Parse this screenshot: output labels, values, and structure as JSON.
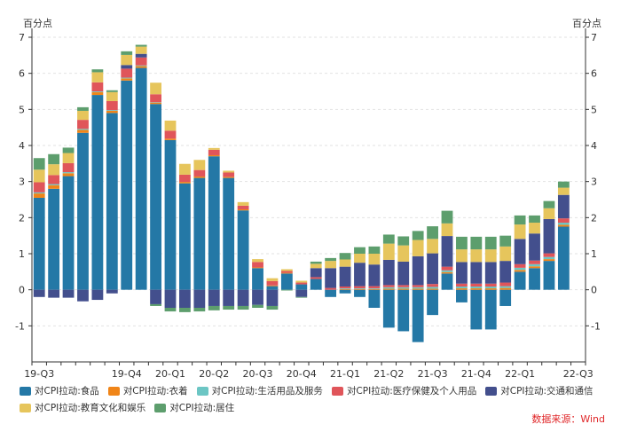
{
  "chart_data": {
    "type": "bar",
    "stacked": true,
    "unit_left": "百分点",
    "unit_right": "百分点",
    "ylim": [
      -2,
      7
    ],
    "yticks": [
      -1,
      0,
      1,
      2,
      3,
      4,
      5,
      6,
      7
    ],
    "xtick_labels": [
      "19-Q3",
      "19-Q4",
      "20-Q1",
      "20-Q2",
      "20-Q3",
      "20-Q4",
      "21-Q1",
      "21-Q2",
      "21-Q3",
      "21-Q4",
      "22-Q1",
      "22-Q3"
    ],
    "xtick_positions": [
      0,
      6,
      9,
      12,
      15,
      18,
      21,
      24,
      27,
      30,
      33,
      37
    ],
    "categories": [
      "2019-07",
      "2019-08",
      "2019-09",
      "2019-10",
      "2019-11",
      "2019-12",
      "2020-01",
      "2020-02",
      "2020-03",
      "2020-04",
      "2020-05",
      "2020-06",
      "2020-07",
      "2020-08",
      "2020-09",
      "2020-10",
      "2020-11",
      "2020-12",
      "2021-01",
      "2021-02",
      "2021-03",
      "2021-04",
      "2021-05",
      "2021-06",
      "2021-07",
      "2021-08",
      "2021-09",
      "2021-10",
      "2021-11",
      "2021-12",
      "2022-01",
      "2022-02",
      "2022-03",
      "2022-04",
      "2022-05",
      "2022-06",
      "2022-07",
      "2022-08"
    ],
    "series": [
      {
        "name": "对CPI拉动:食品",
        "color": "#2478a6",
        "values": [
          2.55,
          2.8,
          3.15,
          4.35,
          5.4,
          4.9,
          5.8,
          6.15,
          5.15,
          4.15,
          2.95,
          3.1,
          3.7,
          3.1,
          2.2,
          0.6,
          0.1,
          0.45,
          0.15,
          0.3,
          -0.2,
          -0.1,
          -0.2,
          -0.5,
          -1.05,
          -1.15,
          -1.45,
          -0.7,
          0.45,
          -0.35,
          -1.1,
          -1.1,
          -0.45,
          0.5,
          0.6,
          0.8,
          1.75,
          0
        ]
      },
      {
        "name": "对CPI拉动:衣着",
        "color": "#f08518",
        "values": [
          0.12,
          0.1,
          0.08,
          0.08,
          0.08,
          0.06,
          0.06,
          0.05,
          0.04,
          0.04,
          0.04,
          0.04,
          0.03,
          0.03,
          0.03,
          0.02,
          0.02,
          0.02,
          0,
          0,
          0,
          0.02,
          0.02,
          0.02,
          0.03,
          0.03,
          0.03,
          0.03,
          0.04,
          0.04,
          0.04,
          0.04,
          0.05,
          0.05,
          0.05,
          0.05,
          0.05,
          0
        ]
      },
      {
        "name": "对CPI拉动:生活用品及服务",
        "color": "#6cc6c4",
        "values": [
          0.03,
          0.03,
          0.03,
          0.03,
          0.02,
          0.02,
          0.02,
          0.02,
          0.01,
          0,
          0,
          0,
          0,
          0,
          0,
          0,
          0,
          0,
          0,
          0,
          0,
          0.02,
          0.02,
          0.02,
          0.04,
          0.04,
          0.04,
          0.05,
          0.05,
          0.05,
          0.05,
          0.05,
          0.05,
          0.06,
          0.06,
          0.06,
          0.06,
          0
        ]
      },
      {
        "name": "对CPI拉动:医疗保健及个人用品",
        "color": "#e0555a",
        "values": [
          0.28,
          0.25,
          0.25,
          0.25,
          0.25,
          0.25,
          0.25,
          0.22,
          0.22,
          0.22,
          0.2,
          0.18,
          0.15,
          0.12,
          0.1,
          0.15,
          0.12,
          0.05,
          0.05,
          0.05,
          0.05,
          0.05,
          0.06,
          0.06,
          0.06,
          0.06,
          0.06,
          0.08,
          0.1,
          0.08,
          0.08,
          0.08,
          0.1,
          0.1,
          0.1,
          0.1,
          0.12,
          0
        ]
      },
      {
        "name": "对CPI拉动:交通和通信",
        "color": "#434f8d",
        "values": [
          -0.2,
          -0.22,
          -0.22,
          -0.32,
          -0.28,
          -0.1,
          0.1,
          0.1,
          -0.4,
          -0.5,
          -0.5,
          -0.5,
          -0.45,
          -0.45,
          -0.45,
          -0.42,
          -0.45,
          0,
          -0.2,
          0.25,
          0.55,
          0.55,
          0.65,
          0.6,
          0.7,
          0.65,
          0.8,
          0.85,
          0.85,
          0.6,
          0.6,
          0.6,
          0.6,
          0.7,
          0.75,
          0.95,
          0.65,
          0
        ]
      },
      {
        "name": "对CPI拉动:教育文化和娱乐",
        "color": "#e6c55c",
        "values": [
          0.35,
          0.3,
          0.28,
          0.25,
          0.28,
          0.25,
          0.28,
          0.2,
          0.32,
          0.28,
          0.3,
          0.28,
          0.05,
          0.05,
          0.1,
          0.08,
          0.08,
          0.05,
          0.05,
          0.12,
          0.2,
          0.2,
          0.25,
          0.3,
          0.45,
          0.45,
          0.45,
          0.4,
          0.35,
          0.35,
          0.35,
          0.35,
          0.4,
          0.4,
          0.3,
          0.3,
          0.2,
          0
        ]
      },
      {
        "name": "对CPI拉动:居住",
        "color": "#5d9e6d",
        "values": [
          0.32,
          0.28,
          0.15,
          0.1,
          0.08,
          0.05,
          0.1,
          0.05,
          -0.05,
          -0.1,
          -0.12,
          -0.1,
          -0.12,
          -0.1,
          -0.1,
          -0.08,
          -0.1,
          -0.02,
          -0.02,
          0.06,
          0.08,
          0.18,
          0.18,
          0.2,
          0.25,
          0.25,
          0.25,
          0.35,
          0.35,
          0.35,
          0.35,
          0.35,
          0.3,
          0.25,
          0.2,
          0.2,
          0.17,
          0
        ]
      }
    ]
  },
  "source_text": "数据来源：Wind"
}
